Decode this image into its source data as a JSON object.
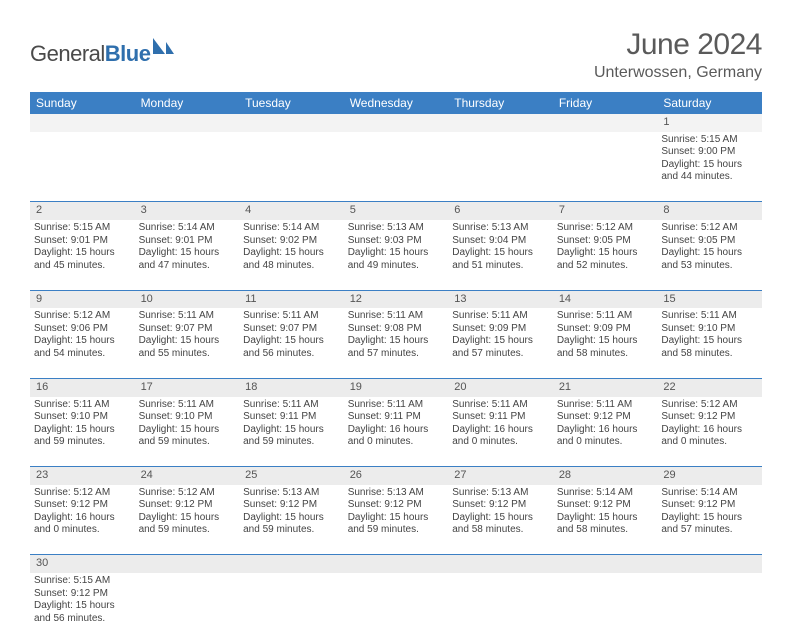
{
  "brand": {
    "name_part1": "General",
    "name_part2": "Blue"
  },
  "title": "June 2024",
  "location": "Unterwossen, Germany",
  "colors": {
    "header_bg": "#3b7fc4",
    "header_text": "#ffffff",
    "daynum_bg": "#ececec",
    "daynum_first_bg": "#f3f3f3",
    "border": "#3b7fc4",
    "page_bg": "#ffffff",
    "text": "#444444",
    "title_text": "#5a5a5a",
    "brand_blue": "#2f6fad"
  },
  "weekdays": [
    "Sunday",
    "Monday",
    "Tuesday",
    "Wednesday",
    "Thursday",
    "Friday",
    "Saturday"
  ],
  "weeks": [
    {
      "nums": [
        "",
        "",
        "",
        "",
        "",
        "",
        "1"
      ],
      "cells": [
        null,
        null,
        null,
        null,
        null,
        null,
        {
          "sunrise": "5:15 AM",
          "sunset": "9:00 PM",
          "daylight": "15 hours and 44 minutes."
        }
      ]
    },
    {
      "nums": [
        "2",
        "3",
        "4",
        "5",
        "6",
        "7",
        "8"
      ],
      "cells": [
        {
          "sunrise": "5:15 AM",
          "sunset": "9:01 PM",
          "daylight": "15 hours and 45 minutes."
        },
        {
          "sunrise": "5:14 AM",
          "sunset": "9:01 PM",
          "daylight": "15 hours and 47 minutes."
        },
        {
          "sunrise": "5:14 AM",
          "sunset": "9:02 PM",
          "daylight": "15 hours and 48 minutes."
        },
        {
          "sunrise": "5:13 AM",
          "sunset": "9:03 PM",
          "daylight": "15 hours and 49 minutes."
        },
        {
          "sunrise": "5:13 AM",
          "sunset": "9:04 PM",
          "daylight": "15 hours and 51 minutes."
        },
        {
          "sunrise": "5:12 AM",
          "sunset": "9:05 PM",
          "daylight": "15 hours and 52 minutes."
        },
        {
          "sunrise": "5:12 AM",
          "sunset": "9:05 PM",
          "daylight": "15 hours and 53 minutes."
        }
      ]
    },
    {
      "nums": [
        "9",
        "10",
        "11",
        "12",
        "13",
        "14",
        "15"
      ],
      "cells": [
        {
          "sunrise": "5:12 AM",
          "sunset": "9:06 PM",
          "daylight": "15 hours and 54 minutes."
        },
        {
          "sunrise": "5:11 AM",
          "sunset": "9:07 PM",
          "daylight": "15 hours and 55 minutes."
        },
        {
          "sunrise": "5:11 AM",
          "sunset": "9:07 PM",
          "daylight": "15 hours and 56 minutes."
        },
        {
          "sunrise": "5:11 AM",
          "sunset": "9:08 PM",
          "daylight": "15 hours and 57 minutes."
        },
        {
          "sunrise": "5:11 AM",
          "sunset": "9:09 PM",
          "daylight": "15 hours and 57 minutes."
        },
        {
          "sunrise": "5:11 AM",
          "sunset": "9:09 PM",
          "daylight": "15 hours and 58 minutes."
        },
        {
          "sunrise": "5:11 AM",
          "sunset": "9:10 PM",
          "daylight": "15 hours and 58 minutes."
        }
      ]
    },
    {
      "nums": [
        "16",
        "17",
        "18",
        "19",
        "20",
        "21",
        "22"
      ],
      "cells": [
        {
          "sunrise": "5:11 AM",
          "sunset": "9:10 PM",
          "daylight": "15 hours and 59 minutes."
        },
        {
          "sunrise": "5:11 AM",
          "sunset": "9:10 PM",
          "daylight": "15 hours and 59 minutes."
        },
        {
          "sunrise": "5:11 AM",
          "sunset": "9:11 PM",
          "daylight": "15 hours and 59 minutes."
        },
        {
          "sunrise": "5:11 AM",
          "sunset": "9:11 PM",
          "daylight": "16 hours and 0 minutes."
        },
        {
          "sunrise": "5:11 AM",
          "sunset": "9:11 PM",
          "daylight": "16 hours and 0 minutes."
        },
        {
          "sunrise": "5:11 AM",
          "sunset": "9:12 PM",
          "daylight": "16 hours and 0 minutes."
        },
        {
          "sunrise": "5:12 AM",
          "sunset": "9:12 PM",
          "daylight": "16 hours and 0 minutes."
        }
      ]
    },
    {
      "nums": [
        "23",
        "24",
        "25",
        "26",
        "27",
        "28",
        "29"
      ],
      "cells": [
        {
          "sunrise": "5:12 AM",
          "sunset": "9:12 PM",
          "daylight": "16 hours and 0 minutes."
        },
        {
          "sunrise": "5:12 AM",
          "sunset": "9:12 PM",
          "daylight": "15 hours and 59 minutes."
        },
        {
          "sunrise": "5:13 AM",
          "sunset": "9:12 PM",
          "daylight": "15 hours and 59 minutes."
        },
        {
          "sunrise": "5:13 AM",
          "sunset": "9:12 PM",
          "daylight": "15 hours and 59 minutes."
        },
        {
          "sunrise": "5:13 AM",
          "sunset": "9:12 PM",
          "daylight": "15 hours and 58 minutes."
        },
        {
          "sunrise": "5:14 AM",
          "sunset": "9:12 PM",
          "daylight": "15 hours and 58 minutes."
        },
        {
          "sunrise": "5:14 AM",
          "sunset": "9:12 PM",
          "daylight": "15 hours and 57 minutes."
        }
      ]
    },
    {
      "nums": [
        "30",
        "",
        "",
        "",
        "",
        "",
        ""
      ],
      "cells": [
        {
          "sunrise": "5:15 AM",
          "sunset": "9:12 PM",
          "daylight": "15 hours and 56 minutes."
        },
        null,
        null,
        null,
        null,
        null,
        null
      ]
    }
  ],
  "labels": {
    "sunrise": "Sunrise: ",
    "sunset": "Sunset: ",
    "daylight": "Daylight: "
  }
}
